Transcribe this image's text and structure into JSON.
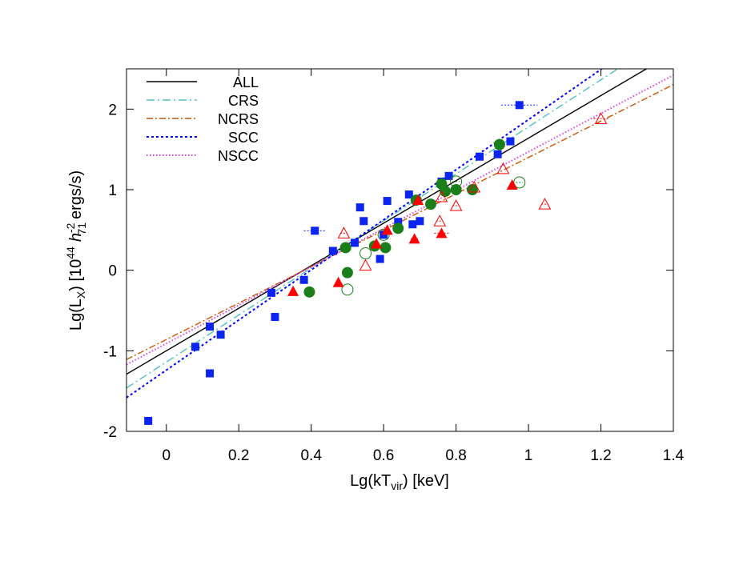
{
  "chart_data": {
    "type": "scatter",
    "xlabel_parts": {
      "main": "Lg(kT",
      "sub": "vir",
      "tail": ") [keV]"
    },
    "ylabel_parts": {
      "a": "Lg(L",
      "a_sub": "X",
      "b": ") [10",
      "b_sup": "44",
      "h": "h",
      "h_sup": "-2",
      "h_sub": "71",
      "c": "ergs/s)"
    },
    "xlim": [
      -0.11,
      1.4
    ],
    "ylim": [
      -2,
      2.5
    ],
    "xticks": [
      0,
      0.2,
      0.4,
      0.6,
      0.8,
      1,
      1.2,
      1.4
    ],
    "xtick_labels": [
      "0",
      "0.2",
      "0.4",
      "0.6",
      "0.8",
      "1",
      "1.2",
      "1.4"
    ],
    "yticks": [
      -2,
      -1,
      0,
      1,
      2
    ],
    "ytick_labels": [
      "-2",
      "-1",
      "0",
      "1",
      "2"
    ],
    "legend_position": "top-left",
    "lines": [
      {
        "name": "ALL",
        "slope": 2.64,
        "intercept": -1.0,
        "color": "#000000",
        "dash": ""
      },
      {
        "name": "CRS",
        "slope": 2.92,
        "intercept": -1.14,
        "color": "#4fc2bf",
        "dash": "10,4,2,4"
      },
      {
        "name": "NCRS",
        "slope": 2.26,
        "intercept": -0.86,
        "color": "#cc5500",
        "dash": "8,3,2,3"
      },
      {
        "name": "SCC",
        "slope": 3.11,
        "intercept": -1.24,
        "color": "#0000ff",
        "dash": "3,3"
      },
      {
        "name": "NSCC",
        "slope": 2.38,
        "intercept": -0.91,
        "color": "#e040e0",
        "dash": "1.5,2.5"
      }
    ],
    "series": [
      {
        "marker": "square",
        "color": "#0b24f0",
        "x": [
          -0.05,
          0.08,
          0.12,
          0.12,
          0.15,
          0.29,
          0.3,
          0.38,
          0.41,
          0.46,
          0.52,
          0.535,
          0.545,
          0.59,
          0.6,
          0.61,
          0.64,
          0.67,
          0.68,
          0.7,
          0.76,
          0.78,
          0.865,
          0.915,
          0.95,
          0.975
        ],
        "y": [
          -1.87,
          -0.95,
          -0.7,
          -1.28,
          -0.8,
          -0.28,
          -0.58,
          -0.12,
          0.49,
          0.24,
          0.34,
          0.78,
          0.61,
          0.14,
          0.44,
          0.86,
          0.6,
          0.94,
          0.57,
          0.61,
          1.1,
          1.17,
          1.41,
          1.44,
          1.6,
          2.05
        ],
        "xerr": [
          0,
          0,
          0,
          0,
          0,
          0,
          0,
          0,
          0.03,
          0,
          0,
          0,
          0,
          0,
          0,
          0,
          0,
          0,
          0,
          0,
          0,
          0,
          0,
          0,
          0,
          0.05
        ]
      },
      {
        "marker": "circle-filled",
        "color": "#1a7f1a",
        "x": [
          0.395,
          0.495,
          0.5,
          0.575,
          0.605,
          0.64,
          0.69,
          0.73,
          0.76,
          0.77,
          0.8,
          0.845,
          0.92
        ],
        "y": [
          -0.27,
          0.28,
          -0.03,
          0.3,
          0.28,
          0.52,
          0.87,
          0.82,
          1.07,
          0.98,
          1.0,
          1.0,
          1.56
        ],
        "xerr": [
          0,
          0,
          0,
          0,
          0,
          0,
          0,
          0,
          0,
          0,
          0,
          0,
          0
        ]
      },
      {
        "marker": "circle-open",
        "color": "#1a7f1a",
        "x": [
          0.5,
          0.55,
          0.6,
          0.8,
          0.975
        ],
        "y": [
          -0.24,
          0.21,
          0.44,
          1.1,
          1.09
        ],
        "xerr": [
          0,
          0,
          0,
          0.01,
          0.01
        ]
      },
      {
        "marker": "triangle-filled",
        "color": "#ff0000",
        "x": [
          0.35,
          0.475,
          0.58,
          0.61,
          0.695,
          0.685,
          0.76,
          0.955
        ],
        "y": [
          -0.26,
          -0.15,
          0.33,
          0.5,
          0.87,
          0.39,
          0.46,
          1.06
        ],
        "xerr": [
          0,
          0,
          0,
          0,
          0,
          0.01,
          0.02,
          0
        ]
      },
      {
        "marker": "triangle-open",
        "color": "#ff0000",
        "x": [
          0.49,
          0.55,
          0.755,
          0.76,
          0.8,
          0.85,
          0.93,
          1.045,
          1.2
        ],
        "y": [
          0.46,
          0.06,
          0.61,
          0.91,
          0.8,
          1.03,
          1.26,
          0.82,
          1.88
        ],
        "xerr": [
          0.01,
          0,
          0.01,
          0,
          0.01,
          0,
          0,
          0.01,
          0.02
        ]
      }
    ]
  }
}
